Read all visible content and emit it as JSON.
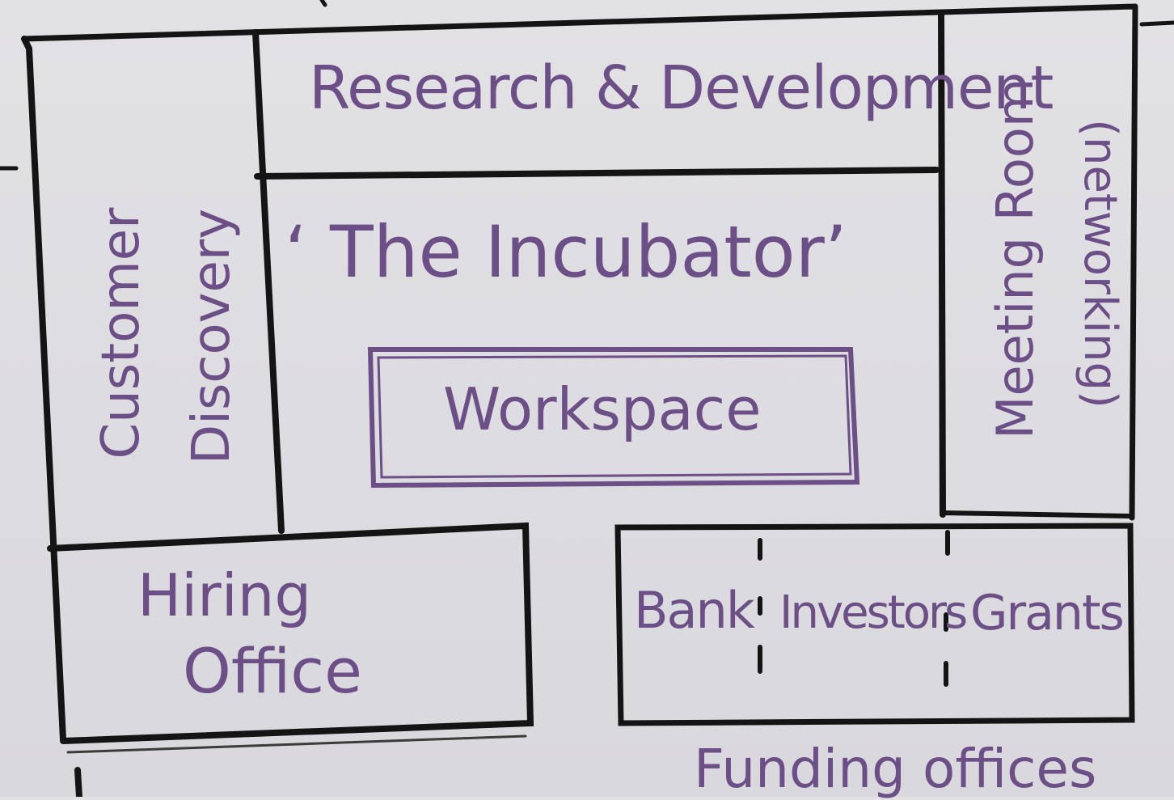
{
  "whiteboard": {
    "rooms": {
      "research": "Research & Development",
      "customer_line1": "Customer",
      "customer_line2": "Discovery",
      "meeting_line1": "Meeting Room",
      "meeting_line2": "(networking)",
      "incubator": "‘ The Incubator’",
      "workspace": "Workspace",
      "hiring_line1": "Hiring",
      "hiring_line2": "Office",
      "bank": "Bank",
      "investors": "Investors",
      "grants": "Grants"
    },
    "footer_label": "Funding offices"
  },
  "colors": {
    "marker_black": "#141414",
    "marker_purple": "#6b4f86",
    "board": "#dedde1"
  }
}
